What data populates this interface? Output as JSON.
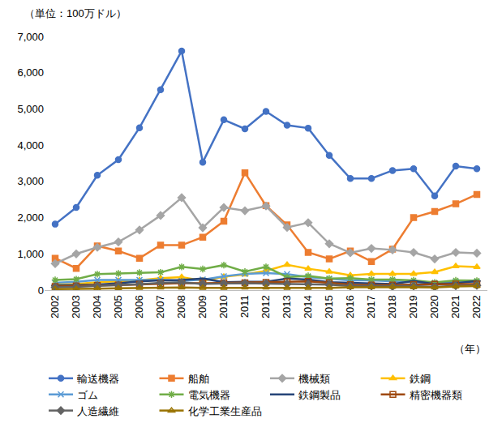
{
  "chart_data": {
    "type": "line",
    "y_label": "（単位：100万ドル）",
    "x_label": "（年）",
    "categories": [
      "2002",
      "2003",
      "2004",
      "2005",
      "2006",
      "2007",
      "2008",
      "2009",
      "2010",
      "2011",
      "2012",
      "2013",
      "2014",
      "2015",
      "2016",
      "2017",
      "2018",
      "2019",
      "2020",
      "2021",
      "2022"
    ],
    "series": [
      {
        "name": "輸送機器",
        "color": "#4472C4",
        "marker": "circle",
        "values": [
          1820,
          2280,
          3170,
          3600,
          4480,
          5530,
          6600,
          3530,
          4700,
          4450,
          4930,
          4550,
          4470,
          3720,
          3080,
          3080,
          3300,
          3350,
          2600,
          3420,
          3350
        ]
      },
      {
        "name": "船舶",
        "color": "#ED7D31",
        "marker": "square",
        "values": [
          880,
          600,
          1220,
          1080,
          880,
          1240,
          1240,
          1460,
          1900,
          3240,
          2330,
          1800,
          1040,
          860,
          1080,
          790,
          1130,
          2000,
          2170,
          2380,
          2640
        ]
      },
      {
        "name": "機械類",
        "color": "#A5A5A5",
        "marker": "diamond",
        "values": [
          730,
          1000,
          1180,
          1330,
          1660,
          2060,
          2550,
          1720,
          2280,
          2190,
          2320,
          1730,
          1860,
          1280,
          1030,
          1150,
          1110,
          1040,
          860,
          1040,
          1020
        ]
      },
      {
        "name": "鉄鋼",
        "color": "#FFC000",
        "marker": "triangle-up",
        "values": [
          150,
          170,
          220,
          250,
          270,
          330,
          360,
          260,
          370,
          430,
          530,
          700,
          590,
          510,
          410,
          450,
          450,
          450,
          500,
          660,
          640
        ]
      },
      {
        "name": "ゴム",
        "color": "#5B9BD5",
        "marker": "x-thin-open",
        "values": [
          200,
          230,
          280,
          280,
          280,
          280,
          250,
          290,
          380,
          450,
          470,
          440,
          360,
          310,
          270,
          270,
          250,
          220,
          190,
          230,
          230
        ]
      },
      {
        "name": "電気機器",
        "color": "#70AD47",
        "marker": "asterisk-open",
        "values": [
          280,
          300,
          440,
          460,
          480,
          490,
          640,
          580,
          690,
          510,
          640,
          360,
          390,
          320,
          330,
          290,
          290,
          270,
          210,
          270,
          260
        ]
      },
      {
        "name": "鉄鋼製品",
        "color": "#264478",
        "marker": "line-ew-open",
        "values": [
          130,
          140,
          150,
          190,
          240,
          270,
          280,
          320,
          220,
          230,
          230,
          320,
          290,
          220,
          200,
          180,
          170,
          250,
          170,
          190,
          250
        ]
      },
      {
        "name": "精密機器類",
        "color": "#9E480E",
        "marker": "square-open",
        "values": [
          100,
          120,
          130,
          140,
          160,
          180,
          190,
          190,
          200,
          200,
          210,
          230,
          240,
          200,
          150,
          140,
          140,
          150,
          160,
          170,
          170
        ]
      },
      {
        "name": "人造繊維",
        "color": "#636363",
        "marker": "diamond",
        "values": [
          80,
          90,
          120,
          140,
          160,
          200,
          210,
          170,
          180,
          190,
          180,
          170,
          160,
          150,
          110,
          110,
          100,
          110,
          90,
          120,
          130
        ]
      },
      {
        "name": "化学工業生産品",
        "color": "#997300",
        "marker": "triangle-up-open",
        "values": [
          30,
          30,
          40,
          50,
          60,
          70,
          70,
          60,
          60,
          70,
          70,
          60,
          60,
          60,
          80,
          80,
          90,
          80,
          70,
          100,
          110
        ]
      }
    ],
    "ylim": [
      0,
      7000
    ],
    "yticks": [
      0,
      {
        "value": 1000,
        "label": "1,000"
      },
      {
        "value": 2000,
        "label": "2,000"
      },
      {
        "value": 3000,
        "label": "3,000"
      },
      {
        "value": 4000,
        "label": "4,000"
      },
      {
        "value": 5000,
        "label": "5,000"
      },
      {
        "value": 6000,
        "label": "6,000"
      },
      {
        "value": 7000,
        "label": "7,000"
      }
    ],
    "grid": false,
    "legend": "bottom"
  }
}
